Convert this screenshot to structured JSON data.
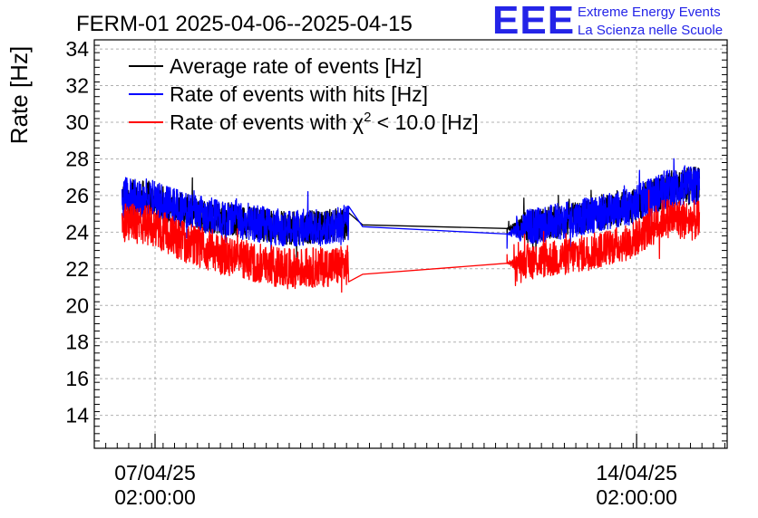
{
  "logo": {
    "mark": "EEE",
    "line1": "Extreme Energy Events",
    "line2": "La Scienza nelle Scuole",
    "color": "#2424e8"
  },
  "chart_data": {
    "type": "line",
    "title": "FERM-01 2025-04-06--2025-04-15",
    "xlabel": "",
    "ylabel": "Rate [Hz]",
    "x_unit": "days since 2025-04-06 00:00",
    "xlim": [
      0.2,
      9.4
    ],
    "ylim": [
      12.2,
      34.5
    ],
    "y_ticks": [
      14,
      16,
      18,
      20,
      22,
      24,
      26,
      28,
      30,
      32,
      34
    ],
    "x_ticks": [
      {
        "x": 1.0833,
        "date": "07/04/25",
        "time": "02:00:00"
      },
      {
        "x": 8.0833,
        "date": "14/04/25",
        "time": "02:00:00"
      }
    ],
    "grid": true,
    "legend_position": "top-left",
    "series": [
      {
        "name": "Average rate of events [Hz]",
        "name_prefix": "Average rate of events [Hz]",
        "name_sup": "",
        "name_suffix": "",
        "color": "#000000",
        "x": [
          0.2,
          0.6,
          1.0,
          1.5,
          2.0,
          2.5,
          3.0,
          3.5,
          3.9,
          4.1,
          6.2,
          6.5,
          7.0,
          7.5,
          8.0,
          8.5,
          9.0,
          9.4
        ],
        "y": [
          null,
          25.9,
          25.8,
          25.2,
          24.8,
          24.5,
          24.2,
          24.3,
          24.5,
          24.4,
          24.2,
          24.3,
          24.6,
          25.0,
          25.4,
          26.3,
          26.6,
          null
        ],
        "amp": [
          0,
          1.0,
          1.0,
          0.9,
          0.9,
          0.9,
          0.9,
          0.9,
          0.9,
          0,
          0,
          0.9,
          0.9,
          0.9,
          0.9,
          1.0,
          1.0,
          0
        ]
      },
      {
        "name": "Rate of events with hits [Hz]",
        "name_prefix": "Rate of events with hits [Hz]",
        "name_sup": "",
        "name_suffix": "",
        "color": "#0000ff",
        "x": [
          0.2,
          0.6,
          1.0,
          1.5,
          2.0,
          2.5,
          3.0,
          3.5,
          3.9,
          4.1,
          6.2,
          6.5,
          7.0,
          7.5,
          8.0,
          8.5,
          9.0,
          9.4
        ],
        "y": [
          null,
          25.9,
          25.8,
          25.2,
          24.8,
          24.5,
          24.2,
          24.3,
          24.5,
          24.3,
          23.9,
          24.3,
          24.6,
          25.0,
          25.4,
          26.3,
          26.6,
          null
        ],
        "amp": [
          0,
          1.1,
          1.1,
          1.0,
          1.0,
          1.0,
          1.0,
          1.0,
          1.0,
          0,
          0,
          1.0,
          1.0,
          1.0,
          1.0,
          1.1,
          1.1,
          0
        ]
      },
      {
        "name": "Rate of events with χ2 < 10.0 [Hz]",
        "name_prefix": "Rate of events with χ",
        "name_sup": "2",
        "name_suffix": " < 10.0 [Hz]",
        "color": "#ff0000",
        "x": [
          0.2,
          0.6,
          1.0,
          1.5,
          2.0,
          2.5,
          3.0,
          3.5,
          3.9,
          4.1,
          6.2,
          6.5,
          7.0,
          7.5,
          8.0,
          8.5,
          9.0,
          9.4
        ],
        "y": [
          null,
          24.5,
          24.4,
          23.5,
          22.8,
          22.4,
          22.0,
          22.1,
          22.2,
          21.7,
          22.3,
          22.4,
          22.6,
          23.0,
          23.5,
          24.8,
          24.6,
          null
        ],
        "amp": [
          0,
          1.1,
          1.1,
          1.1,
          1.1,
          1.1,
          1.1,
          1.1,
          1.1,
          0,
          0,
          1.0,
          1.0,
          1.0,
          1.0,
          1.1,
          1.1,
          0
        ]
      }
    ]
  }
}
